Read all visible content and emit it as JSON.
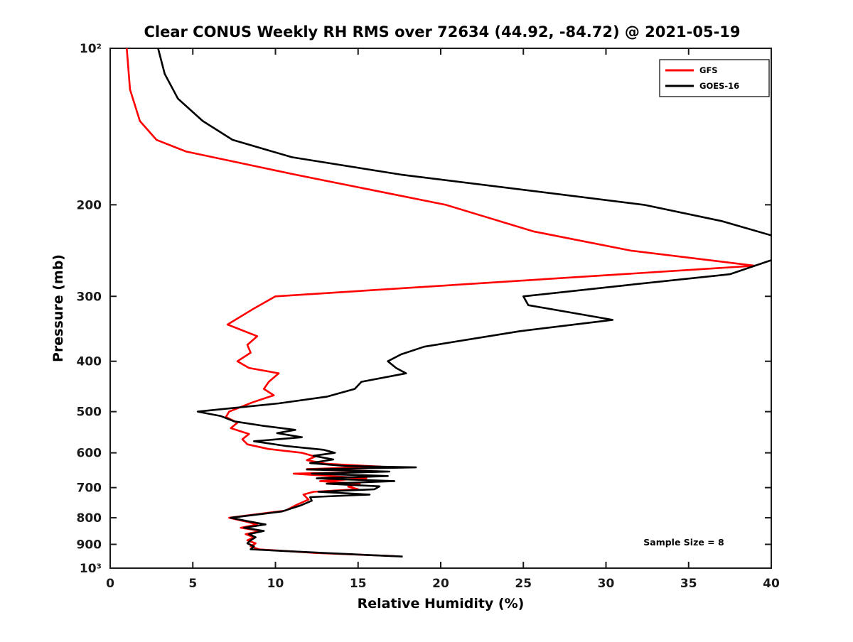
{
  "page": {
    "background": "#ffffff"
  },
  "chart_data": {
    "type": "line",
    "title": "Clear CONUS Weekly RH RMS over 72634 (44.92, -84.72) @ 2021-05-19",
    "xlabel": "Relative Humidity (%)",
    "ylabel": "Pressure (mb)",
    "annotation": "Sample Size = 8",
    "xlim": [
      0,
      40
    ],
    "ylim_pressure_mb": [
      100,
      1000
    ],
    "y_scale": "log10",
    "y_inverted": true,
    "grid": false,
    "frame_color": "#1a1a1a",
    "x_ticks": [
      {
        "value": 0,
        "label": "0"
      },
      {
        "value": 5,
        "label": "5"
      },
      {
        "value": 10,
        "label": "10"
      },
      {
        "value": 15,
        "label": "15"
      },
      {
        "value": 20,
        "label": "20"
      },
      {
        "value": 25,
        "label": "25"
      },
      {
        "value": 30,
        "label": "30"
      },
      {
        "value": 35,
        "label": "35"
      },
      {
        "value": 40,
        "label": "40"
      }
    ],
    "y_ticks": [
      {
        "value": 100,
        "label": "10²"
      },
      {
        "value": 200,
        "label": "200"
      },
      {
        "value": 300,
        "label": "300"
      },
      {
        "value": 400,
        "label": "400"
      },
      {
        "value": 500,
        "label": "500"
      },
      {
        "value": 600,
        "label": "600"
      },
      {
        "value": 700,
        "label": "700"
      },
      {
        "value": 800,
        "label": "800"
      },
      {
        "value": 900,
        "label": "900"
      },
      {
        "value": 1000,
        "label": "10³"
      }
    ],
    "legend": {
      "position": "top-right",
      "entries": [
        {
          "name": "GFS",
          "color": "#ff0000"
        },
        {
          "name": "GOES-16",
          "color": "#000000"
        }
      ]
    },
    "series": [
      {
        "name": "GFS",
        "color": "#ff0000",
        "line_width": 2.6,
        "points_pressure_rh": [
          [
            100,
            1.0
          ],
          [
            120,
            1.2
          ],
          [
            138,
            1.8
          ],
          [
            150,
            2.8
          ],
          [
            158,
            4.6
          ],
          [
            175,
            11.2
          ],
          [
            200,
            20.3
          ],
          [
            225,
            25.6
          ],
          [
            245,
            31.5
          ],
          [
            262,
            39.0
          ],
          [
            300,
            10.0
          ],
          [
            318,
            8.6
          ],
          [
            340,
            7.1
          ],
          [
            358,
            8.9
          ],
          [
            372,
            8.3
          ],
          [
            385,
            8.5
          ],
          [
            400,
            7.7
          ],
          [
            412,
            8.4
          ],
          [
            422,
            10.2
          ],
          [
            438,
            9.6
          ],
          [
            452,
            9.3
          ],
          [
            465,
            9.9
          ],
          [
            480,
            8.6
          ],
          [
            500,
            7.2
          ],
          [
            512,
            7.0
          ],
          [
            525,
            7.7
          ],
          [
            538,
            7.3
          ],
          [
            552,
            8.4
          ],
          [
            565,
            8.0
          ],
          [
            578,
            8.3
          ],
          [
            590,
            9.6
          ],
          [
            600,
            11.6
          ],
          [
            610,
            12.4
          ],
          [
            620,
            11.9
          ],
          [
            630,
            13.1
          ],
          [
            638,
            16.4
          ],
          [
            645,
            11.9
          ],
          [
            652,
            16.7
          ],
          [
            658,
            11.1
          ],
          [
            665,
            13.3
          ],
          [
            672,
            15.5
          ],
          [
            680,
            12.7
          ],
          [
            688,
            15.1
          ],
          [
            697,
            14.4
          ],
          [
            705,
            15.0
          ],
          [
            713,
            12.3
          ],
          [
            722,
            11.7
          ],
          [
            738,
            12.0
          ],
          [
            755,
            11.3
          ],
          [
            775,
            10.6
          ],
          [
            800,
            7.2
          ],
          [
            812,
            8.1
          ],
          [
            824,
            8.9
          ],
          [
            836,
            7.9
          ],
          [
            848,
            9.1
          ],
          [
            860,
            8.2
          ],
          [
            872,
            8.7
          ],
          [
            884,
            8.3
          ],
          [
            896,
            8.8
          ],
          [
            908,
            8.5
          ],
          [
            920,
            9.0
          ],
          [
            935,
            12.4
          ],
          [
            948,
            17.2
          ]
        ]
      },
      {
        "name": "GOES-16",
        "color": "#000000",
        "line_width": 2.6,
        "points_pressure_rh": [
          [
            100,
            2.9
          ],
          [
            112,
            3.3
          ],
          [
            125,
            4.1
          ],
          [
            138,
            5.6
          ],
          [
            150,
            7.4
          ],
          [
            162,
            11.0
          ],
          [
            175,
            17.6
          ],
          [
            200,
            32.3
          ],
          [
            215,
            37.0
          ],
          [
            230,
            40.2
          ],
          [
            255,
            40.1
          ],
          [
            272,
            37.5
          ],
          [
            285,
            31.5
          ],
          [
            300,
            25.0
          ],
          [
            312,
            25.3
          ],
          [
            333,
            30.4
          ],
          [
            350,
            24.8
          ],
          [
            375,
            19.0
          ],
          [
            388,
            17.6
          ],
          [
            400,
            16.8
          ],
          [
            412,
            17.3
          ],
          [
            422,
            17.9
          ],
          [
            438,
            15.2
          ],
          [
            452,
            14.8
          ],
          [
            468,
            13.1
          ],
          [
            482,
            10.2
          ],
          [
            500,
            5.3
          ],
          [
            510,
            6.7
          ],
          [
            522,
            7.5
          ],
          [
            532,
            9.2
          ],
          [
            542,
            11.2
          ],
          [
            550,
            10.1
          ],
          [
            560,
            11.6
          ],
          [
            570,
            8.7
          ],
          [
            582,
            10.6
          ],
          [
            592,
            12.9
          ],
          [
            600,
            13.6
          ],
          [
            608,
            12.3
          ],
          [
            618,
            13.5
          ],
          [
            628,
            12.1
          ],
          [
            636,
            14.2
          ],
          [
            640,
            18.5
          ],
          [
            646,
            11.9
          ],
          [
            652,
            16.9
          ],
          [
            658,
            12.2
          ],
          [
            665,
            16.8
          ],
          [
            672,
            12.5
          ],
          [
            680,
            17.2
          ],
          [
            688,
            13.1
          ],
          [
            696,
            16.3
          ],
          [
            705,
            16.0
          ],
          [
            713,
            12.6
          ],
          [
            722,
            15.7
          ],
          [
            730,
            12.1
          ],
          [
            742,
            12.2
          ],
          [
            758,
            11.5
          ],
          [
            778,
            10.4
          ],
          [
            800,
            7.3
          ],
          [
            812,
            8.3
          ],
          [
            824,
            9.4
          ],
          [
            836,
            8.1
          ],
          [
            848,
            9.3
          ],
          [
            860,
            8.4
          ],
          [
            872,
            8.8
          ],
          [
            884,
            8.5
          ],
          [
            896,
            8.3
          ],
          [
            908,
            8.7
          ],
          [
            920,
            8.5
          ],
          [
            935,
            12.9
          ],
          [
            950,
            17.7
          ]
        ]
      }
    ]
  }
}
